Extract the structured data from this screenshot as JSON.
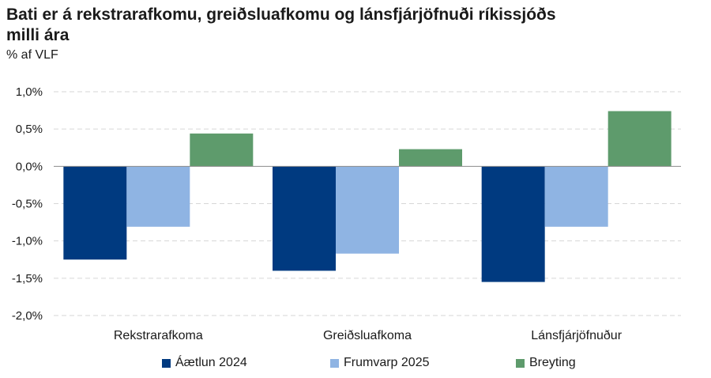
{
  "title": "Bati er á rekstrarafkomu, greiðsluafkomu og lánsfjárjöfnuði ríkissjóðs milli ára",
  "subtitle": "% af VLF",
  "chart_data": {
    "type": "bar",
    "categories": [
      "Rekstrarafkoma",
      "Greiðsluafkoma",
      "Lánsfjárjöfnuður"
    ],
    "series": [
      {
        "name": "Áætlun 2024",
        "color": "#003a80",
        "values": [
          -1.25,
          -1.4,
          -1.55
        ]
      },
      {
        "name": "Frumvarp 2025",
        "color": "#8fb4e3",
        "values": [
          -0.81,
          -1.17,
          -0.81
        ]
      },
      {
        "name": "Breyting",
        "color": "#5e9b6c",
        "values": [
          0.44,
          0.23,
          0.74
        ]
      }
    ],
    "ylim": [
      -2.0,
      1.0
    ],
    "yticks": [
      "1,0%",
      "0,5%",
      "0,0%",
      "-0,5%",
      "-1,0%",
      "-1,5%",
      "-2,0%"
    ],
    "grid": true,
    "legend_position": "bottom"
  }
}
